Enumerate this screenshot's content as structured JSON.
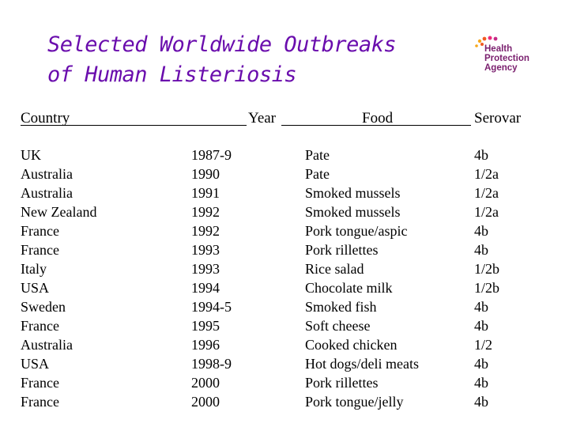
{
  "title": {
    "line1": "Selected Worldwide Outbreaks",
    "line2": "of Human Listeriosis"
  },
  "logo": {
    "line1": "Health",
    "line2": "Protection",
    "line3": "Agency",
    "colors": {
      "text": "#7a1f6e",
      "dots": [
        "#f7a81b",
        "#f15a22",
        "#ee2a7b",
        "#c62a87"
      ]
    }
  },
  "table": {
    "headers": {
      "country": "Country",
      "year": "Year",
      "food": "Food",
      "serovar": "Serovar"
    },
    "countries": [
      "UK",
      "Australia",
      "Australia",
      "New Zealand",
      "France",
      "France",
      "Italy",
      "USA",
      "Sweden",
      "France",
      "Australia",
      "USA",
      "France",
      "France"
    ],
    "years": [
      "1987-9",
      "1990",
      "1991",
      "1992",
      "1992",
      "1993",
      "1993",
      "1994",
      "1994-5",
      "1995",
      "1996",
      "1998-9",
      "2000",
      "2000"
    ],
    "foods": [
      "Pate",
      "Pate",
      "Smoked mussels",
      "Smoked mussels",
      "Pork tongue/aspic",
      "Pork rillettes",
      "Rice salad",
      "Chocolate milk",
      "Smoked fish",
      "Soft cheese",
      "Cooked chicken",
      "Hot dogs/deli meats",
      "Pork rillettes",
      "Pork tongue/jelly"
    ],
    "serovars": [
      "4b",
      "1/2a",
      "1/2a",
      "1/2a",
      "4b",
      "4b",
      "1/2b",
      "1/2b",
      "4b",
      "4b",
      "1/2",
      "4b",
      "4b",
      "4b"
    ]
  }
}
